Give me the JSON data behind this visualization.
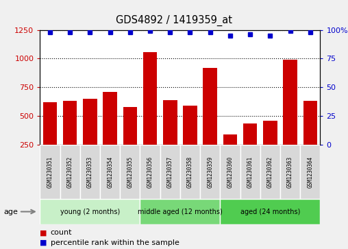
{
  "title": "GDS4892 / 1419359_at",
  "samples": [
    "GSM1230351",
    "GSM1230352",
    "GSM1230353",
    "GSM1230354",
    "GSM1230355",
    "GSM1230356",
    "GSM1230357",
    "GSM1230358",
    "GSM1230359",
    "GSM1230360",
    "GSM1230361",
    "GSM1230362",
    "GSM1230363",
    "GSM1230364"
  ],
  "counts": [
    620,
    630,
    650,
    710,
    575,
    1055,
    635,
    590,
    920,
    340,
    435,
    455,
    990,
    630
  ],
  "percentile_ranks": [
    98,
    98,
    98,
    98,
    98,
    99,
    98,
    98,
    98,
    95,
    96,
    95,
    99,
    98
  ],
  "groups": [
    {
      "label": "young (2 months)",
      "start": 0,
      "end": 5,
      "color": "#c8f0c8"
    },
    {
      "label": "middle aged (12 months)",
      "start": 5,
      "end": 9,
      "color": "#78d878"
    },
    {
      "label": "aged (24 months)",
      "start": 9,
      "end": 14,
      "color": "#50cc50"
    }
  ],
  "ylim_left": [
    250,
    1250
  ],
  "ylim_right": [
    0,
    100
  ],
  "yticks_left": [
    250,
    500,
    750,
    1000,
    1250
  ],
  "yticks_right": [
    0,
    25,
    50,
    75,
    100
  ],
  "bar_color": "#CC0000",
  "dot_color": "#0000CC",
  "background_color": "#f0f0f0",
  "plot_bg_color": "#ffffff",
  "label_box_color": "#d8d8d8",
  "age_label": "age",
  "legend_count": "count",
  "legend_percentile": "percentile rank within the sample"
}
